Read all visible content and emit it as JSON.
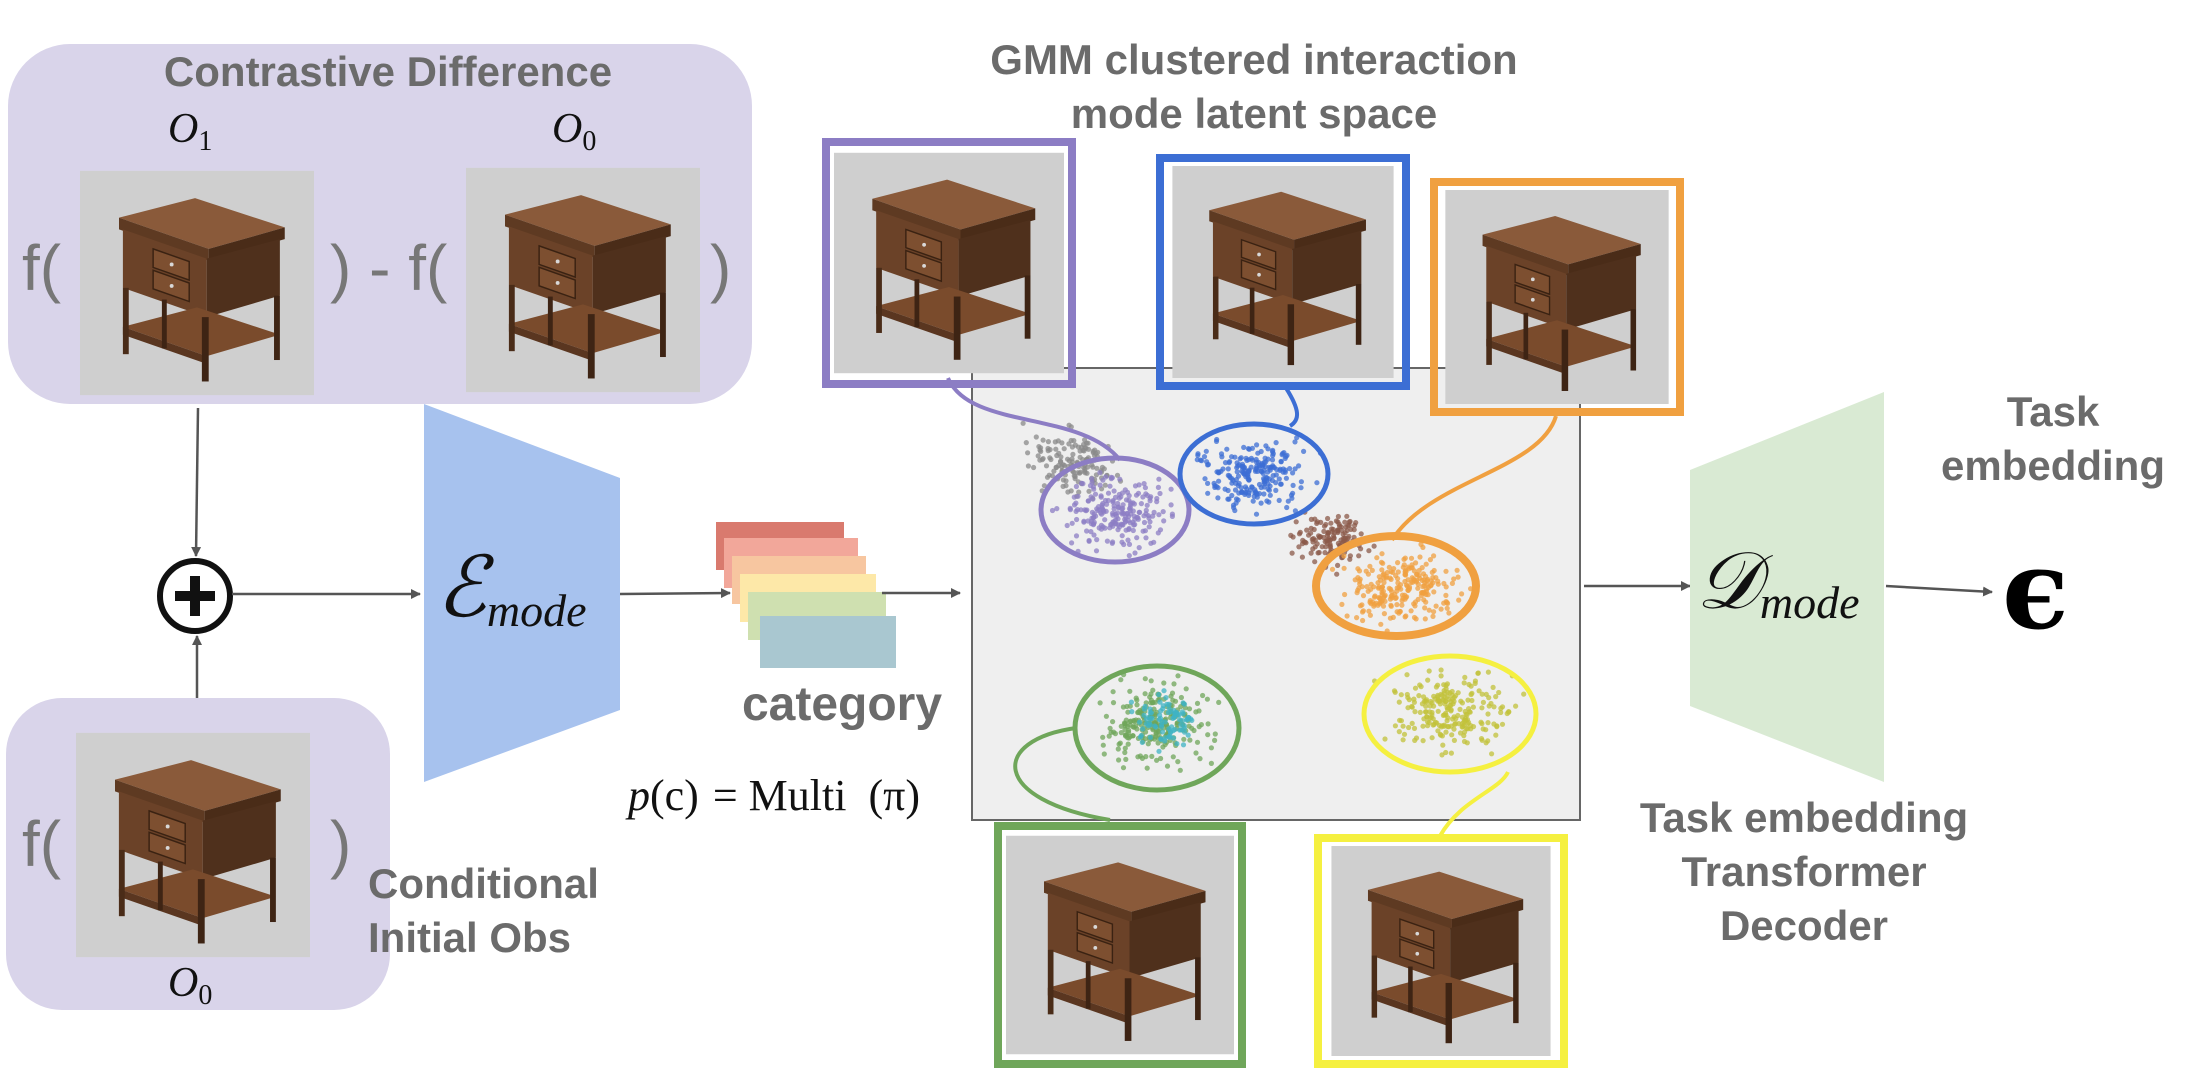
{
  "contrastive": {
    "title": "Contrastive Difference",
    "o1_label": "O",
    "o1_sub": "1",
    "o0_label": "O",
    "o0_sub": "0",
    "f_open": "f(",
    "middle": ") - f(",
    "close": ")"
  },
  "conditional": {
    "f_open": "f(",
    "close": ")",
    "o0_label": "O",
    "o0_sub": "0",
    "label_line1": "Conditional",
    "label_line2": "Initial Obs"
  },
  "encoder": {
    "symbol": "ℰ",
    "subscript": "mode"
  },
  "category": {
    "label": "category",
    "prior_p": "p",
    "prior_c": "(c)",
    "prior_eq": "= Multi",
    "prior_pi": "(π)"
  },
  "latent": {
    "title_line1": "GMM clustered interaction",
    "title_line2": "mode latent space"
  },
  "decoder": {
    "symbol": "𝒟",
    "subscript": "mode",
    "label_line1": "Task embedding",
    "label_line2": "Transformer",
    "label_line3": "Decoder"
  },
  "output": {
    "label_line1": "Task",
    "label_line2": "embedding",
    "symbol": "ϵ"
  },
  "operator": "+",
  "colors": {
    "panel_fill": "#d9d4ea",
    "encoder_fill": "#a7c2ee",
    "decoder_fill": "#d9ead3",
    "latent_fill": "#efefef",
    "purple": "#8c7dc4",
    "blue": "#3c6ed4",
    "orange": "#f0a040",
    "green": "#6fa65a",
    "yellow": "#f5f040",
    "gray": "#8a8a8a",
    "brown": "#8b5a4a",
    "category_stack": [
      "#d97a6e",
      "#f2a79a",
      "#f7c6a0",
      "#fde8a8",
      "#cfe0b0",
      "#a9c7d0"
    ]
  },
  "icons": [
    "cabinet-thumbnail",
    "plus-circle-icon",
    "arrow-icon"
  ]
}
